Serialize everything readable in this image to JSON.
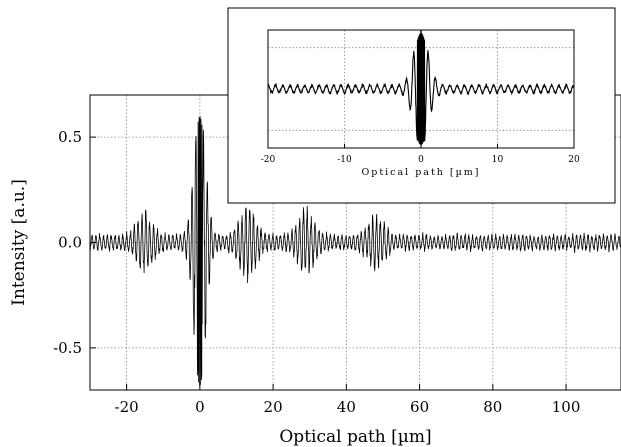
{
  "chart_data": [
    {
      "type": "line",
      "title": "",
      "xlabel": "Optical path [µm]",
      "ylabel": "Intensity [a.u.]",
      "xlim": [
        -30,
        115
      ],
      "ylim": [
        -0.7,
        0.7
      ],
      "xticks": [
        -20,
        0,
        20,
        40,
        60,
        80,
        100
      ],
      "xtick_labels": [
        "-20",
        "0",
        "20",
        "40",
        "60",
        "80",
        "100"
      ],
      "yticks": [
        -0.5,
        0.0,
        0.5
      ],
      "ytick_labels": [
        "-0.5",
        "0.0",
        "0.5"
      ],
      "grid": true,
      "line_color": "#000000",
      "signal": {
        "x_range": [
          -30,
          115
        ],
        "background_amplitude": 0.05,
        "central_peak_x": 0,
        "central_peak_max": 0.6,
        "central_peak_min": -0.68,
        "side_bursts": [
          {
            "x": -15,
            "amplitude": 0.12
          },
          {
            "x": 13,
            "amplitude": 0.15
          },
          {
            "x": 29,
            "amplitude": 0.13
          },
          {
            "x": 48,
            "amplitude": 0.1
          }
        ]
      }
    },
    {
      "type": "line",
      "title": "",
      "xlabel": "Optical path [µm]",
      "ylabel": "",
      "xlim": [
        -20,
        20
      ],
      "ylim": [
        -1,
        1
      ],
      "xticks": [
        -20,
        -10,
        0,
        10,
        20
      ],
      "xtick_labels": [
        "-20",
        "-10",
        "0",
        "10",
        "20"
      ],
      "grid": true,
      "line_color": "#000000",
      "signal": {
        "x_range": [
          -20,
          20
        ],
        "central_peak_x": 0,
        "central_peak_max": 0.95,
        "central_peak_min": -0.95,
        "background_amplitude": 0.1
      }
    }
  ]
}
